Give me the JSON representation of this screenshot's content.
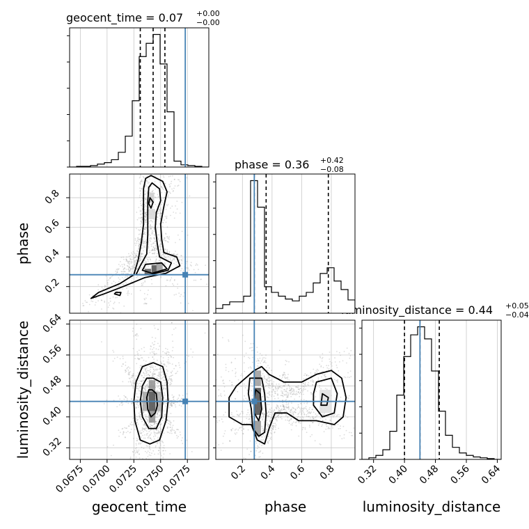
{
  "chart_data": {
    "type": "corner",
    "parameters": [
      "geocent_time",
      "phase",
      "luminosity_distance"
    ],
    "truth": {
      "geocent_time": 0.0773,
      "phase": 0.28,
      "luminosity_distance": 0.44
    },
    "truth_color": "#4682b4",
    "titles": [
      {
        "param": "geocent_time",
        "label": "geocent_time = 0.07",
        "sup": "+0.00",
        "sub": "−0.00"
      },
      {
        "param": "phase",
        "label": "phase = 0.36",
        "sup": "+0.42",
        "sub": "−0.08"
      },
      {
        "param": "luminosity_distance",
        "label": "luminosity_distance = 0.44",
        "sup": "+0.05",
        "sub": "−0.04"
      }
    ],
    "axes": {
      "geocent_time": {
        "range": [
          0.0665,
          0.0795
        ],
        "ticks": [
          0.0675,
          0.07,
          0.0725,
          0.075,
          0.0775
        ],
        "tick_labels": [
          "0.0675",
          "0.0700",
          "0.0725",
          "0.0750",
          "0.0775"
        ],
        "label": "geocent_time"
      },
      "phase": {
        "range": [
          0.02,
          0.96
        ],
        "ticks": [
          0.2,
          0.4,
          0.6,
          0.8
        ],
        "tick_labels": [
          "0.2",
          "0.4",
          "0.6",
          "0.8"
        ],
        "label": "phase"
      },
      "luminosity_distance": {
        "range": [
          0.29,
          0.65
        ],
        "ticks": [
          0.32,
          0.4,
          0.48,
          0.56,
          0.64
        ],
        "tick_labels": [
          "0.32",
          "0.40",
          "0.48",
          "0.56",
          "0.64"
        ],
        "label": "luminosity_distance"
      }
    },
    "histograms": {
      "geocent_time": {
        "bins": [
          0.0665,
          0.06715,
          0.0678,
          0.06845,
          0.0691,
          0.06975,
          0.0704,
          0.07105,
          0.0717,
          0.07235,
          0.073,
          0.07365,
          0.0743,
          0.07495,
          0.0756,
          0.07625,
          0.0769,
          0.07755,
          0.0782,
          0.07885,
          0.0795
        ],
        "counts": [
          0,
          1,
          1,
          2,
          4,
          6,
          10,
          20,
          42,
          90,
          150,
          168,
          180,
          140,
          75,
          8,
          3,
          2,
          1,
          0
        ],
        "quantiles": [
          0.0731,
          0.0743,
          0.0754
        ]
      },
      "phase": {
        "bins": [
          0.02,
          0.067,
          0.114,
          0.161,
          0.208,
          0.255,
          0.302,
          0.349,
          0.396,
          0.443,
          0.49,
          0.537,
          0.584,
          0.631,
          0.678,
          0.725,
          0.772,
          0.819,
          0.866,
          0.913,
          0.96
        ],
        "counts": [
          5,
          9,
          12,
          12,
          18,
          140,
          112,
          28,
          22,
          18,
          15,
          13,
          18,
          22,
          32,
          42,
          48,
          34,
          25,
          14
        ],
        "quantiles": [
          0.28,
          0.36,
          0.78
        ]
      },
      "luminosity_distance": {
        "bins": [
          0.29,
          0.308,
          0.326,
          0.344,
          0.362,
          0.38,
          0.398,
          0.416,
          0.434,
          0.452,
          0.47,
          0.488,
          0.506,
          0.524,
          0.542,
          0.56,
          0.578,
          0.596,
          0.614,
          0.632,
          0.65
        ],
        "counts": [
          0,
          2,
          5,
          12,
          35,
          80,
          128,
          155,
          165,
          150,
          110,
          60,
          30,
          15,
          8,
          5,
          3,
          2,
          1,
          0
        ],
        "quantiles": [
          0.4,
          0.44,
          0.49
        ]
      }
    },
    "contours": [
      {
        "x": "geocent_time",
        "y": "phase",
        "levels": [
          [
            [
              0.0741,
              0.95
            ],
            [
              0.0752,
              0.91
            ],
            [
              0.0756,
              0.84
            ],
            [
              0.0753,
              0.74
            ],
            [
              0.075,
              0.62
            ],
            [
              0.0751,
              0.52
            ],
            [
              0.0753,
              0.43
            ],
            [
              0.0765,
              0.4
            ],
            [
              0.0768,
              0.34
            ],
            [
              0.0755,
              0.29
            ],
            [
              0.0735,
              0.26
            ],
            [
              0.0715,
              0.2
            ],
            [
              0.0697,
              0.15
            ],
            [
              0.0685,
              0.12
            ],
            [
              0.0692,
              0.16
            ],
            [
              0.0712,
              0.22
            ],
            [
              0.0725,
              0.28
            ],
            [
              0.0729,
              0.38
            ],
            [
              0.0732,
              0.5
            ],
            [
              0.0734,
              0.62
            ],
            [
              0.0734,
              0.74
            ],
            [
              0.0734,
              0.86
            ],
            [
              0.0736,
              0.93
            ]
          ],
          [
            [
              0.0742,
              0.9
            ],
            [
              0.0749,
              0.86
            ],
            [
              0.075,
              0.78
            ],
            [
              0.0746,
              0.7
            ],
            [
              0.0745,
              0.6
            ],
            [
              0.0747,
              0.48
            ],
            [
              0.0749,
              0.4
            ],
            [
              0.076,
              0.36
            ],
            [
              0.0757,
              0.31
            ],
            [
              0.074,
              0.28
            ],
            [
              0.0727,
              0.28
            ],
            [
              0.0731,
              0.34
            ],
            [
              0.0737,
              0.42
            ],
            [
              0.0738,
              0.55
            ],
            [
              0.0738,
              0.67
            ],
            [
              0.0738,
              0.78
            ],
            [
              0.0739,
              0.87
            ]
          ],
          [
            [
              0.074,
              0.8
            ],
            [
              0.0743,
              0.77
            ],
            [
              0.0741,
              0.73
            ],
            [
              0.0739,
              0.76
            ]
          ],
          [
            [
              0.0736,
              0.35
            ],
            [
              0.0751,
              0.36
            ],
            [
              0.0756,
              0.32
            ],
            [
              0.0742,
              0.29
            ],
            [
              0.0733,
              0.31
            ]
          ],
          [
            [
              0.0708,
              0.16
            ],
            [
              0.0713,
              0.16
            ],
            [
              0.0712,
              0.14
            ],
            [
              0.0707,
              0.15
            ]
          ]
        ]
      },
      {
        "x": "geocent_time",
        "y": "luminosity_distance",
        "levels": [
          [
            [
              0.0743,
              0.54
            ],
            [
              0.0752,
              0.53
            ],
            [
              0.0756,
              0.49
            ],
            [
              0.0757,
              0.44
            ],
            [
              0.0755,
              0.39
            ],
            [
              0.0749,
              0.34
            ],
            [
              0.074,
              0.33
            ],
            [
              0.0731,
              0.34
            ],
            [
              0.0726,
              0.39
            ],
            [
              0.0725,
              0.44
            ],
            [
              0.0727,
              0.49
            ],
            [
              0.0733,
              0.53
            ]
          ],
          [
            [
              0.0743,
              0.5
            ],
            [
              0.075,
              0.49
            ],
            [
              0.0752,
              0.45
            ],
            [
              0.0751,
              0.4
            ],
            [
              0.0746,
              0.37
            ],
            [
              0.0739,
              0.37
            ],
            [
              0.0733,
              0.4
            ],
            [
              0.0731,
              0.44
            ],
            [
              0.0733,
              0.48
            ],
            [
              0.0737,
              0.5
            ]
          ],
          [
            [
              0.0742,
              0.47
            ],
            [
              0.0746,
              0.46
            ],
            [
              0.0747,
              0.43
            ],
            [
              0.0745,
              0.41
            ],
            [
              0.0741,
              0.4
            ],
            [
              0.0738,
              0.42
            ],
            [
              0.0737,
              0.45
            ],
            [
              0.0739,
              0.47
            ]
          ]
        ]
      },
      {
        "x": "phase",
        "y": "luminosity_distance",
        "levels": [
          [
            [
              0.28,
              0.52
            ],
            [
              0.33,
              0.53
            ],
            [
              0.38,
              0.51
            ],
            [
              0.48,
              0.49
            ],
            [
              0.6,
              0.49
            ],
            [
              0.7,
              0.51
            ],
            [
              0.8,
              0.52
            ],
            [
              0.87,
              0.5
            ],
            [
              0.9,
              0.45
            ],
            [
              0.88,
              0.4
            ],
            [
              0.82,
              0.38
            ],
            [
              0.7,
              0.39
            ],
            [
              0.58,
              0.39
            ],
            [
              0.5,
              0.41
            ],
            [
              0.42,
              0.41
            ],
            [
              0.38,
              0.37
            ],
            [
              0.35,
              0.33
            ],
            [
              0.3,
              0.34
            ],
            [
              0.26,
              0.38
            ],
            [
              0.2,
              0.38
            ],
            [
              0.11,
              0.4
            ],
            [
              0.11,
              0.45
            ],
            [
              0.16,
              0.48
            ],
            [
              0.22,
              0.5
            ]
          ],
          [
            [
              0.25,
              0.5
            ],
            [
              0.33,
              0.5
            ],
            [
              0.35,
              0.46
            ],
            [
              0.36,
              0.41
            ],
            [
              0.35,
              0.36
            ],
            [
              0.31,
              0.35
            ],
            [
              0.27,
              0.37
            ],
            [
              0.26,
              0.42
            ],
            [
              0.24,
              0.46
            ]
          ],
          [
            [
              0.7,
              0.49
            ],
            [
              0.8,
              0.5
            ],
            [
              0.84,
              0.46
            ],
            [
              0.82,
              0.41
            ],
            [
              0.74,
              0.4
            ],
            [
              0.68,
              0.43
            ],
            [
              0.68,
              0.46
            ]
          ],
          [
            [
              0.29,
              0.47
            ],
            [
              0.32,
              0.46
            ],
            [
              0.33,
              0.42
            ],
            [
              0.31,
              0.39
            ],
            [
              0.28,
              0.41
            ],
            [
              0.28,
              0.45
            ]
          ],
          [
            [
              0.74,
              0.46
            ],
            [
              0.78,
              0.45
            ],
            [
              0.77,
              0.43
            ],
            [
              0.73,
              0.43
            ]
          ]
        ]
      }
    ],
    "density_blobs": [
      {
        "x": "geocent_time",
        "y": "phase",
        "cells": [
          {
            "cx": 0.0744,
            "cy": 0.32,
            "w": 0.0005,
            "h": 0.05,
            "v": 0.9
          },
          {
            "cx": 0.0738,
            "cy": 0.3,
            "w": 0.0006,
            "h": 0.04,
            "v": 0.8
          },
          {
            "cx": 0.0749,
            "cy": 0.33,
            "w": 0.0006,
            "h": 0.05,
            "v": 0.5
          },
          {
            "cx": 0.0741,
            "cy": 0.8,
            "w": 0.0006,
            "h": 0.07,
            "v": 0.25
          },
          {
            "cx": 0.0742,
            "cy": 0.69,
            "w": 0.0006,
            "h": 0.07,
            "v": 0.2
          }
        ]
      },
      {
        "x": "geocent_time",
        "y": "luminosity_distance",
        "cells": [
          {
            "cx": 0.0742,
            "cy": 0.44,
            "w": 0.0006,
            "h": 0.05,
            "v": 0.9
          },
          {
            "cx": 0.0742,
            "cy": 0.48,
            "w": 0.0006,
            "h": 0.03,
            "v": 0.55
          },
          {
            "cx": 0.0742,
            "cy": 0.4,
            "w": 0.0006,
            "h": 0.03,
            "v": 0.55
          },
          {
            "cx": 0.0736,
            "cy": 0.44,
            "w": 0.0006,
            "h": 0.05,
            "v": 0.45
          },
          {
            "cx": 0.0748,
            "cy": 0.44,
            "w": 0.0006,
            "h": 0.05,
            "v": 0.4
          }
        ]
      },
      {
        "x": "phase",
        "y": "luminosity_distance",
        "cells": [
          {
            "cx": 0.3,
            "cy": 0.44,
            "w": 0.05,
            "h": 0.07,
            "v": 0.9
          },
          {
            "cx": 0.3,
            "cy": 0.37,
            "w": 0.05,
            "h": 0.04,
            "v": 0.55
          },
          {
            "cx": 0.3,
            "cy": 0.5,
            "w": 0.05,
            "h": 0.04,
            "v": 0.5
          },
          {
            "cx": 0.76,
            "cy": 0.44,
            "w": 0.08,
            "h": 0.06,
            "v": 0.15
          }
        ]
      }
    ]
  }
}
